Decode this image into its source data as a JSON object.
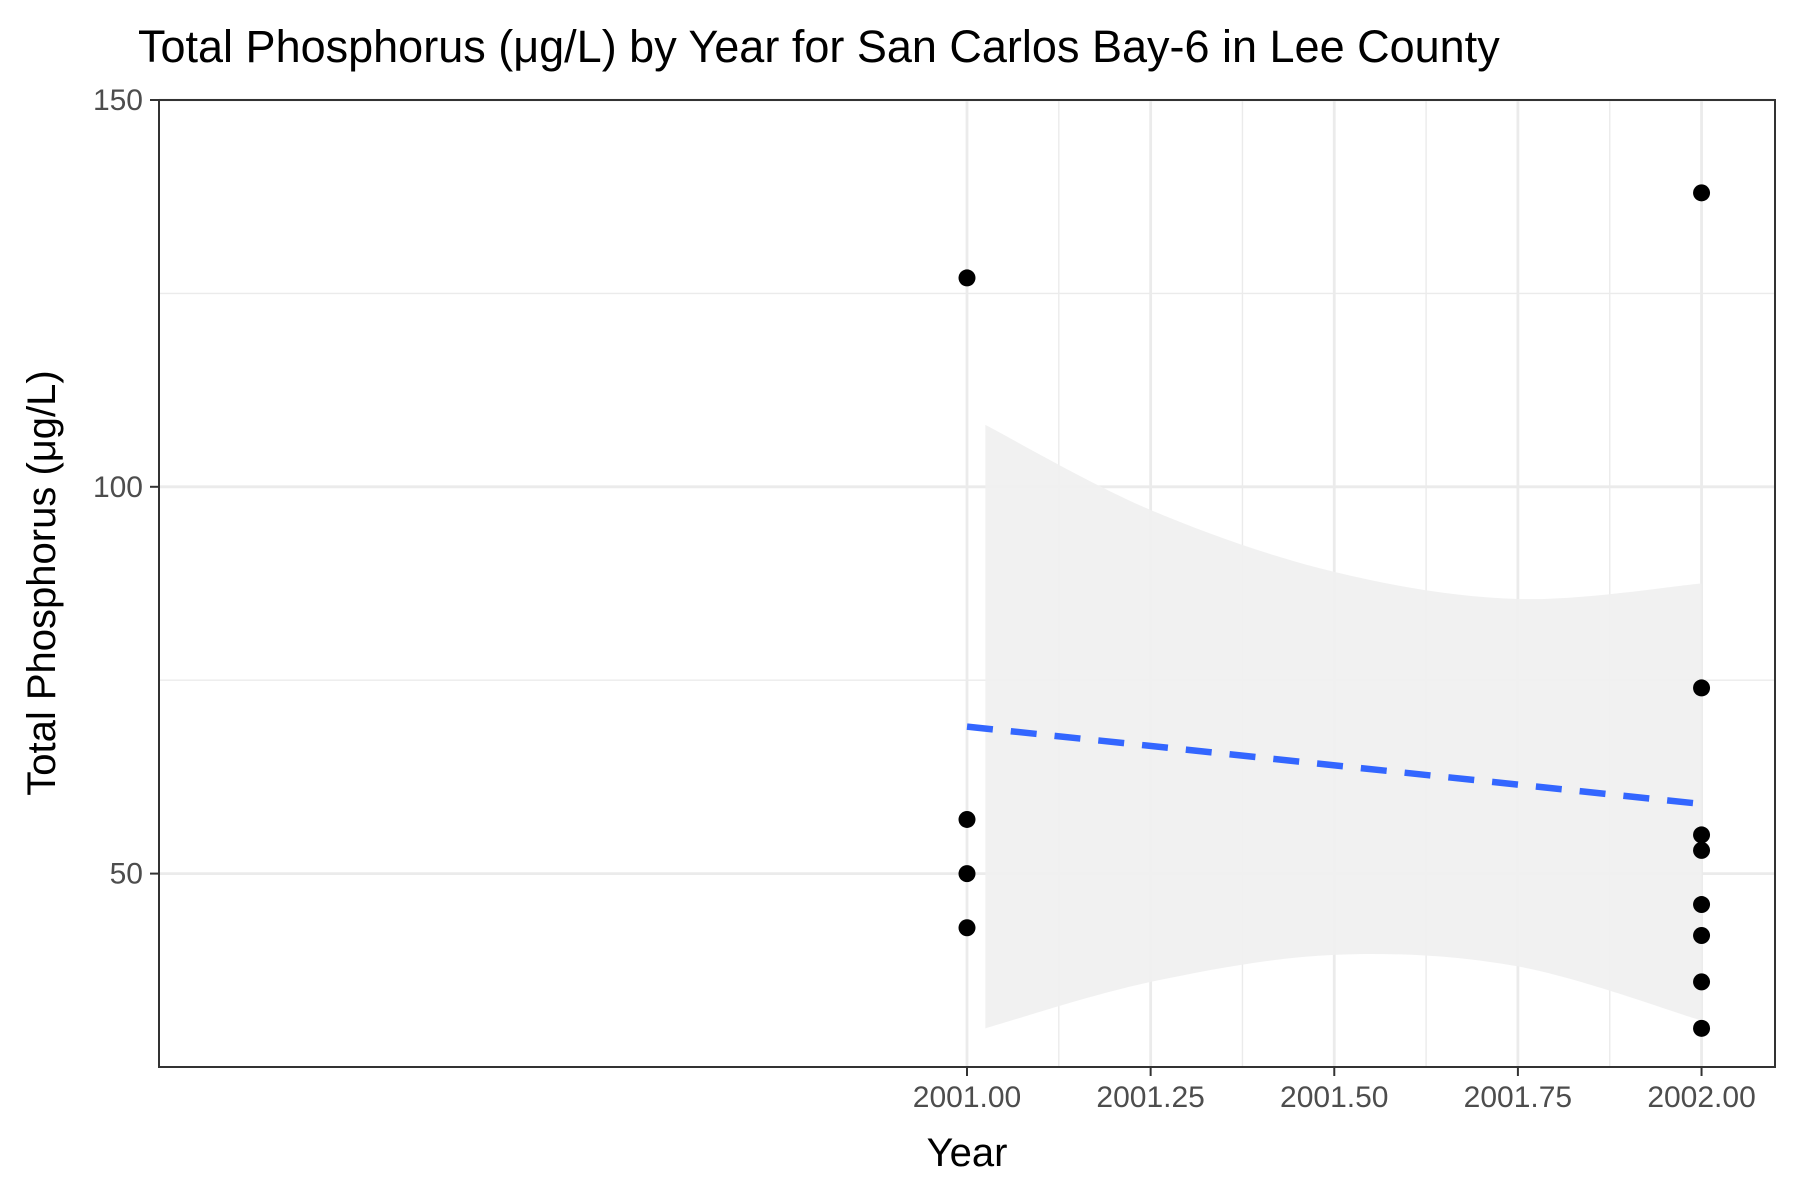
{
  "chart_data": {
    "type": "scatter",
    "title": "Total Phosphorus (μg/L) by Year for San Carlos Bay-6 in Lee County",
    "xlabel": "Year",
    "ylabel": "Total Phosphorus (μg/L)",
    "xlim": [
      1999.9,
      2002.1
    ],
    "ylim": [
      25,
      150
    ],
    "x_ticks": [
      2001.0,
      2001.25,
      2001.5,
      2001.75,
      2002.0
    ],
    "x_tick_labels": [
      "2001.00",
      "2001.25",
      "2001.50",
      "2001.75",
      "2002.00"
    ],
    "y_ticks": [
      50,
      100,
      150
    ],
    "y_tick_labels": [
      "50",
      "100",
      "150"
    ],
    "grid": true,
    "legend": "none",
    "points": [
      {
        "x": 2001,
        "y": 127
      },
      {
        "x": 2001,
        "y": 57
      },
      {
        "x": 2001,
        "y": 50
      },
      {
        "x": 2001,
        "y": 43
      },
      {
        "x": 2002,
        "y": 138
      },
      {
        "x": 2002,
        "y": 74
      },
      {
        "x": 2002,
        "y": 55
      },
      {
        "x": 2002,
        "y": 53
      },
      {
        "x": 2002,
        "y": 46
      },
      {
        "x": 2002,
        "y": 42
      },
      {
        "x": 2002,
        "y": 36
      },
      {
        "x": 2002,
        "y": 30
      }
    ],
    "trend_line": {
      "style": "dashed",
      "color": "#3366ff",
      "start": {
        "x": 2001,
        "y": 69
      },
      "end": {
        "x": 2002,
        "y": 59
      }
    },
    "confidence_band": {
      "color": "#f0f0f0",
      "upper": [
        {
          "x": 2001.025,
          "y": 108
        },
        {
          "x": 2001.25,
          "y": 97
        },
        {
          "x": 2001.5,
          "y": 89
        },
        {
          "x": 2001.75,
          "y": 85.5
        },
        {
          "x": 2002.0,
          "y": 87.5
        }
      ],
      "lower": [
        {
          "x": 2001.025,
          "y": 30
        },
        {
          "x": 2001.25,
          "y": 36
        },
        {
          "x": 2001.5,
          "y": 39.5
        },
        {
          "x": 2001.75,
          "y": 38
        },
        {
          "x": 2002.0,
          "y": 31
        }
      ]
    }
  }
}
